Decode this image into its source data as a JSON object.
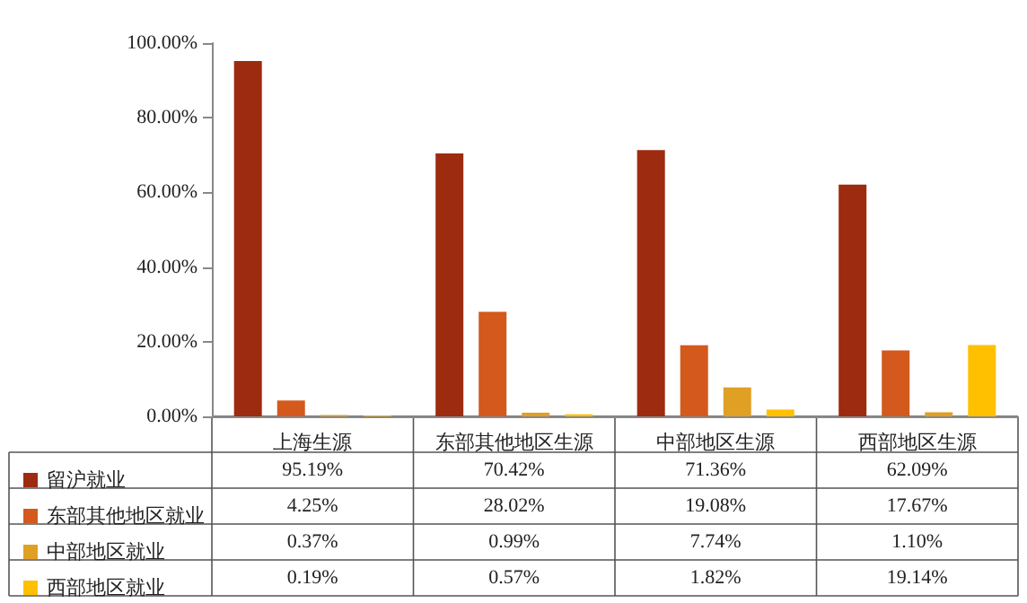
{
  "chart_data": {
    "type": "bar",
    "categories": [
      "上海生源",
      "东部其他地区生源",
      "中部地区生源",
      "西部地区生源"
    ],
    "series": [
      {
        "name": "留沪就业",
        "color": "#9c2b10",
        "values": [
          95.19,
          70.42,
          71.36,
          62.09
        ],
        "value_labels": [
          "95.19%",
          "70.42%",
          "71.36%",
          "62.09%"
        ]
      },
      {
        "name": "东部其他地区就业",
        "color": "#d4591c",
        "values": [
          4.25,
          28.02,
          19.08,
          17.67
        ],
        "value_labels": [
          "4.25%",
          "28.02%",
          "19.08%",
          "17.67%"
        ]
      },
      {
        "name": "中部地区就业",
        "color": "#e0a024",
        "values": [
          0.37,
          0.99,
          7.74,
          1.1
        ],
        "value_labels": [
          "0.37%",
          "0.99%",
          "7.74%",
          "1.10%"
        ]
      },
      {
        "name": "西部地区就业",
        "color": "#ffc000",
        "values": [
          0.19,
          0.57,
          1.82,
          19.14
        ],
        "value_labels": [
          "0.19%",
          "0.57%",
          "1.82%",
          "19.14%"
        ]
      }
    ],
    "ylim": [
      0,
      100
    ],
    "yticks": [
      {
        "value": 0,
        "label": "0.00%"
      },
      {
        "value": 20,
        "label": "20.00%"
      },
      {
        "value": 40,
        "label": "40.00%"
      },
      {
        "value": 60,
        "label": "60.00%"
      },
      {
        "value": 80,
        "label": "80.00%"
      },
      {
        "value": 100,
        "label": "100.00%"
      }
    ],
    "grid": false,
    "legend": "bottom"
  }
}
